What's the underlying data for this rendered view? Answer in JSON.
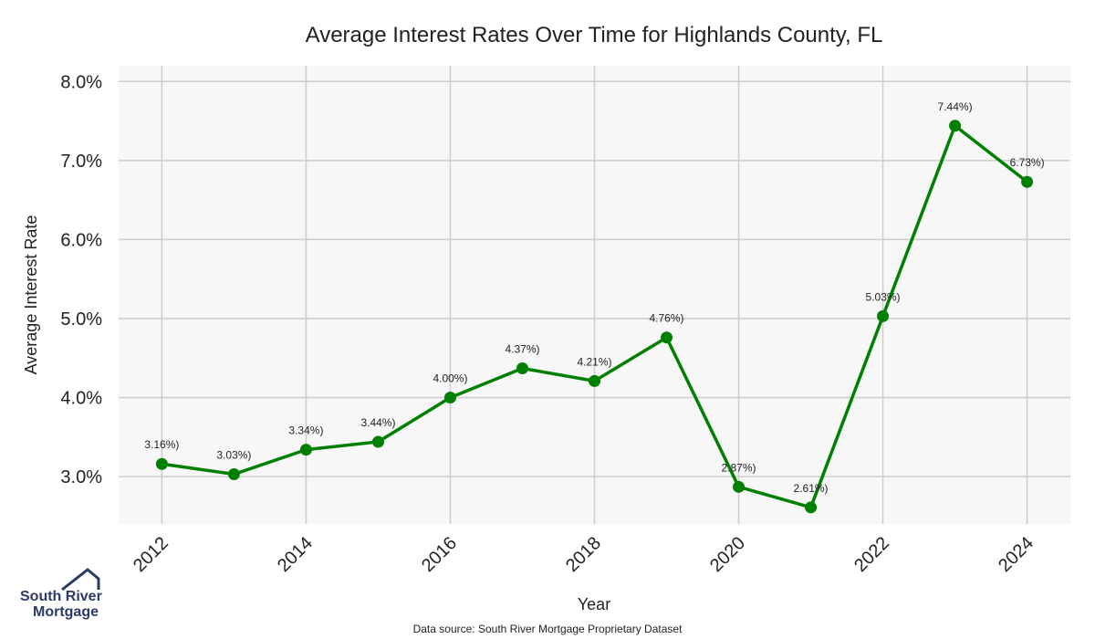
{
  "chart_data": {
    "type": "line",
    "title": "Average Interest Rates Over Time for Highlands County, FL",
    "xlabel": "Year",
    "ylabel": "Average Interest Rate",
    "x": [
      2012,
      2013,
      2014,
      2015,
      2016,
      2017,
      2018,
      2019,
      2020,
      2021,
      2022,
      2023,
      2024
    ],
    "series": [
      {
        "values": [
          3.16,
          3.03,
          3.34,
          3.44,
          4.0,
          4.37,
          4.21,
          4.76,
          2.87,
          2.61,
          5.03,
          7.44,
          6.73
        ],
        "labels": [
          "3.16%)",
          "3.03%)",
          "3.34%)",
          "3.44%)",
          "4.00%)",
          "4.37%)",
          "4.21%)",
          "4.76%)",
          "2.87%)",
          "2.61%)",
          "5.03%)",
          "7.44%)",
          "6.73%)"
        ]
      }
    ],
    "xticks": [
      "2012",
      "2014",
      "2016",
      "2018",
      "2020",
      "2022",
      "2024"
    ],
    "xtick_values": [
      2012,
      2014,
      2016,
      2018,
      2020,
      2022,
      2024
    ],
    "yticks": [
      "3.0%",
      "4.0%",
      "5.0%",
      "6.0%",
      "7.0%",
      "8.0%"
    ],
    "ytick_values": [
      3,
      4,
      5,
      6,
      7,
      8
    ],
    "ylim": [
      2.4,
      8.2
    ],
    "xlim": [
      2011.4,
      2024.6
    ],
    "grid": true,
    "line_color": "#008000",
    "background_color": "#f7f7f7",
    "grid_color": "#cccccc"
  },
  "footer": {
    "source": "Data source: South River Mortgage Proprietary Dataset"
  },
  "logo": {
    "line1": "South River",
    "line2": "Mortgage",
    "icon": "house-roof-icon",
    "color": "#2b3a67"
  }
}
